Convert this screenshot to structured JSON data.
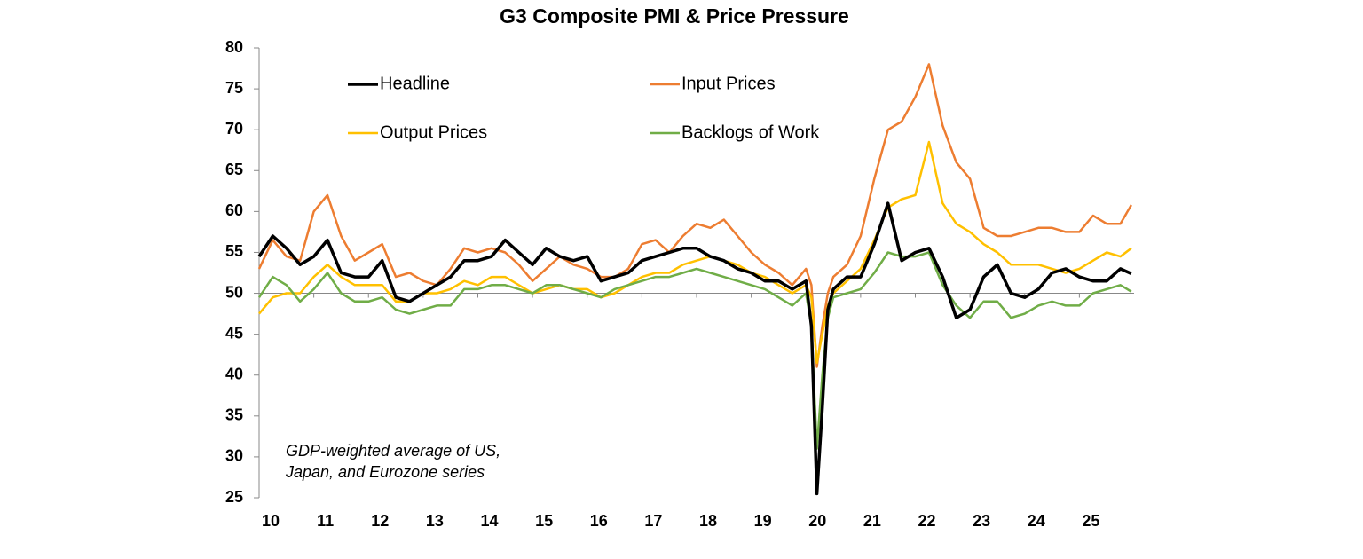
{
  "chart_data": {
    "type": "line",
    "title": "G3 Composite PMI & Price Pressure",
    "annotation": [
      "GDP-weighted average of US,",
      "Japan, and Eurozone series"
    ],
    "x": [
      10,
      10.25,
      10.5,
      10.75,
      11,
      11.25,
      11.5,
      11.75,
      12,
      12.25,
      12.5,
      12.75,
      13,
      13.25,
      13.5,
      13.75,
      14,
      14.25,
      14.5,
      14.75,
      15,
      15.25,
      15.5,
      15.75,
      16,
      16.25,
      16.5,
      16.75,
      17,
      17.25,
      17.5,
      17.75,
      18,
      18.25,
      18.5,
      18.75,
      19,
      19.25,
      19.5,
      19.75,
      20,
      20.1,
      20.2,
      20.3,
      20.4,
      20.5,
      20.75,
      21,
      21.25,
      21.5,
      21.75,
      22,
      22.25,
      22.5,
      22.75,
      23,
      23.25,
      23.5,
      23.75,
      24,
      24.25,
      24.5,
      24.75,
      25,
      25.25,
      25.5,
      25.75,
      25.95
    ],
    "series": [
      {
        "name": "Headline",
        "color": "#000000",
        "width": 3.5,
        "values": [
          54.5,
          57,
          55.5,
          53.5,
          54.5,
          56.5,
          52.5,
          52,
          52,
          54,
          49.5,
          49,
          50,
          51,
          52,
          54,
          54,
          54.5,
          56.5,
          55,
          53.5,
          55.5,
          54.5,
          54,
          54.5,
          51.5,
          52,
          52.5,
          54,
          54.5,
          55,
          55.5,
          55.5,
          54.5,
          54,
          53,
          52.5,
          51.5,
          51.5,
          50.5,
          51.5,
          46,
          25.5,
          36,
          48,
          50.5,
          52,
          52,
          56,
          61,
          54,
          55,
          55.5,
          52,
          47,
          48,
          52,
          53.5,
          50,
          49.5,
          50.5,
          52.5,
          53,
          52,
          51.5,
          51.5,
          53,
          52.4
        ]
      },
      {
        "name": "Input Prices",
        "color": "#ed7d31",
        "width": 2.5,
        "values": [
          53,
          56.5,
          54.5,
          54,
          60,
          62,
          57,
          54,
          55,
          56,
          52,
          52.5,
          51.5,
          51,
          53,
          55.5,
          55,
          55.5,
          55,
          53.5,
          51.5,
          53,
          54.5,
          53.5,
          53,
          52,
          52,
          53,
          56,
          56.5,
          55,
          57,
          58.5,
          58,
          59,
          57,
          55,
          53.5,
          52.5,
          51,
          53,
          51,
          41,
          46,
          50,
          52,
          53.5,
          57,
          64,
          70,
          71,
          74,
          78,
          70.5,
          66,
          64,
          58,
          57,
          57,
          57.5,
          58,
          58,
          57.5,
          57.5,
          59.5,
          58.5,
          58.5,
          60.8
        ]
      },
      {
        "name": "Output Prices",
        "color": "#ffc000",
        "width": 2.5,
        "values": [
          47.5,
          49.5,
          50,
          50,
          52,
          53.5,
          52,
          51,
          51,
          51,
          49,
          49,
          50,
          50,
          50.5,
          51.5,
          51,
          52,
          52,
          51,
          50,
          50.5,
          51,
          50.5,
          50.5,
          49.5,
          50,
          51,
          52,
          52.5,
          52.5,
          53.5,
          54,
          54.5,
          54,
          53.5,
          52.5,
          52,
          51,
          50,
          51,
          49.5,
          41.5,
          45,
          48.5,
          50,
          51.5,
          53,
          56.5,
          60.5,
          61.5,
          62,
          68.5,
          61,
          58.5,
          57.5,
          56,
          55,
          53.5,
          53.5,
          53.5,
          53,
          52.5,
          53,
          54,
          55,
          54.5,
          55.5
        ]
      },
      {
        "name": "Backlogs of Work",
        "color": "#70ad47",
        "width": 2.5,
        "values": [
          49.5,
          52,
          51,
          49,
          50.5,
          52.5,
          50,
          49,
          49,
          49.5,
          48,
          47.5,
          48,
          48.5,
          48.5,
          50.5,
          50.5,
          51,
          51,
          50.5,
          50,
          51,
          51,
          50.5,
          50,
          49.5,
          50.5,
          51,
          51.5,
          52,
          52,
          52.5,
          53,
          52.5,
          52,
          51.5,
          51,
          50.5,
          49.5,
          48.5,
          50,
          46,
          31,
          40,
          47,
          49.5,
          50,
          50.5,
          52.5,
          55,
          54.5,
          54.5,
          55,
          51,
          48.5,
          47,
          49,
          49,
          47,
          47.5,
          48.5,
          49,
          48.5,
          48.5,
          50,
          50.5,
          51,
          50.2
        ]
      }
    ],
    "xlim": [
      10,
      26
    ],
    "xticks": [
      10,
      11,
      12,
      13,
      14,
      15,
      16,
      17,
      18,
      19,
      20,
      21,
      22,
      23,
      24,
      25
    ],
    "ylim": [
      25,
      80
    ],
    "yticks": [
      25,
      30,
      35,
      40,
      45,
      50,
      55,
      60,
      65,
      70,
      75,
      80
    ],
    "x_axis_at": 50,
    "grid": false,
    "legend": "top-left"
  }
}
